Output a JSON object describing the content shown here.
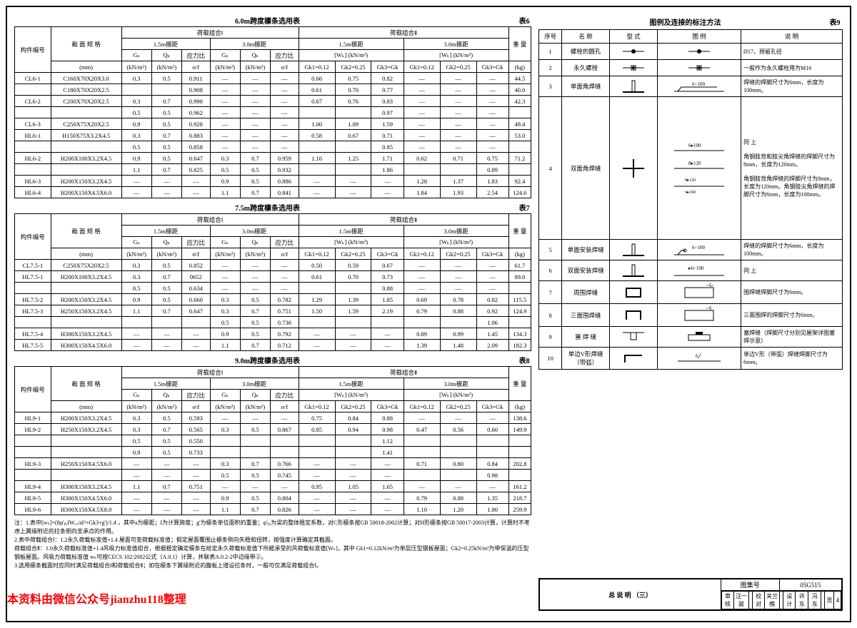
{
  "tables": {
    "t6": {
      "title": "6.0m跨度檩条选用表",
      "label": "表6"
    },
    "t7": {
      "title": "7.5m跨度檩条选用表",
      "label": "表7"
    },
    "t8": {
      "title": "9.0m跨度檩条选用表",
      "label": "表8"
    },
    "t9": {
      "title": "图例及连接的标注方法",
      "label": "表9"
    }
  },
  "headers": {
    "member": "构件编号",
    "section": "截 面 规 格",
    "mm": "(mm)",
    "load1": "荷载组合Ⅰ",
    "load2": "荷载组合Ⅱ",
    "span15": "1.5m檩距",
    "span30": "3.0m檩距",
    "gk": "Gₖ",
    "qk": "Qₖ",
    "ratio": "应力比",
    "sf": "σ/f",
    "unit": "(kN/m²)",
    "wk": "[Wₖ] (kN/m²)",
    "gk012": "Gk1=0.12",
    "gk025": "Gk2=0.25",
    "gk3": "Gk3=Gk",
    "weight": "重 量",
    "kg": "(kg)"
  },
  "t6rows": [
    [
      "CL6-1",
      "C160X70X20X3.0",
      "0.3",
      "0.5",
      "0.911",
      "—",
      "—",
      "—",
      "0.66",
      "0.75",
      "0.82",
      "—",
      "—",
      "—",
      "44.5"
    ],
    [
      "",
      "C180X70X20X2.5",
      "",
      "",
      "0.908",
      "—",
      "—",
      "—",
      "0.61",
      "0.70",
      "0.77",
      "—",
      "—",
      "—",
      "40.0"
    ],
    [
      "CL6-2",
      "C200X70X20X2.5",
      "0.3",
      "0.7",
      "0.990",
      "—",
      "—",
      "—",
      "0.67",
      "0.76",
      "0.83",
      "—",
      "—",
      "—",
      "42.3"
    ],
    [
      "",
      "",
      "0.5",
      "0.5",
      "0.962",
      "—",
      "—",
      "—",
      "",
      "",
      "0.97",
      "—",
      "—",
      "—",
      ""
    ],
    [
      "CL6-3",
      "C250X75X20X2.5",
      "0.9",
      "0.5",
      "0.928",
      "—",
      "—",
      "—",
      "1.00",
      "1.09",
      "1.59",
      "—",
      "—",
      "—",
      "49.4"
    ],
    [
      "HL6-1",
      "H150X75X3.2X4.5",
      "0.3",
      "0.7",
      "0.883",
      "—",
      "—",
      "—",
      "0.58",
      "0.67",
      "0.71",
      "—",
      "—",
      "—",
      "53.0"
    ],
    [
      "",
      "",
      "0.5",
      "0.5",
      "0.858",
      "—",
      "—",
      "—",
      "",
      "",
      "0.85",
      "—",
      "—",
      "—",
      ""
    ],
    [
      "HL6-2",
      "H200X100X3.2X4.5",
      "0.9",
      "0.5",
      "0.647",
      "0.3",
      "0.7",
      "0.959",
      "1.16",
      "1.25",
      "1.71",
      "0.62",
      "0.71",
      "0.75",
      "71.2"
    ],
    [
      "",
      "",
      "1.1",
      "0.7",
      "0.825",
      "0.5",
      "0.5",
      "0.932",
      "",
      "",
      "1.86",
      "",
      "",
      "0.89",
      ""
    ],
    [
      "HL6-3",
      "H200X150X3.2X4.5",
      "—",
      "—",
      "—",
      "0.9",
      "0.5",
      "0.886",
      "—",
      "—",
      "—",
      "1.28",
      "1.37",
      "1.83",
      "92.4"
    ],
    [
      "HL6-4",
      "H200X150X4.5X6.0",
      "—",
      "—",
      "—",
      "1.1",
      "0.7",
      "0.841",
      "—",
      "—",
      "—",
      "1.84",
      "1.93",
      "2.54",
      "124.6"
    ]
  ],
  "t7rows": [
    [
      "CL7.5-1",
      "C250X75X20X2.5",
      "0.3",
      "0.5",
      "0.852",
      "—",
      "—",
      "—",
      "0.50",
      "0.59",
      "0.67",
      "—",
      "—",
      "—",
      "61.7"
    ],
    [
      "HL7.5-1",
      "H200X100X3.2X4.5",
      "0.3",
      "0.7",
      "0652",
      "—",
      "—",
      "—",
      "0.61",
      "0.70",
      "0.73",
      "—",
      "—",
      "—",
      "89.0"
    ],
    [
      "",
      "",
      "0.5",
      "0.5",
      "0.634",
      "—",
      "—",
      "—",
      "",
      "",
      "0.88",
      "—",
      "—",
      "—",
      ""
    ],
    [
      "HL7.5-2",
      "H200X150X3.2X4.5",
      "0.9",
      "0.5",
      "0.660",
      "0.3",
      "0.5",
      "0.782",
      "1.29",
      "1.39",
      "1.85",
      "0.69",
      "0.78",
      "0.82",
      "115.5"
    ],
    [
      "HL7.5-3",
      "H250X150X3.2X4.5",
      "1.1",
      "0.7",
      "0.647",
      "0.3",
      "0.7",
      "0.751",
      "1.50",
      "1.59",
      "2.19",
      "0.79",
      "0.88",
      "0.92",
      "124.9"
    ],
    [
      "",
      "",
      "",
      "",
      "",
      "0.5",
      "0.5",
      "0.730",
      "",
      "",
      "",
      "",
      "",
      "1.06",
      ""
    ],
    [
      "HL7.5-4",
      "H300X150X3.2X4.5",
      "—",
      "—",
      "—",
      "0.9",
      "0.5",
      "0.792",
      "—",
      "—",
      "—",
      "0.89",
      "0.99",
      "1.45",
      "134.3"
    ],
    [
      "HL7.5-5",
      "H300X150X4.5X6.0",
      "—",
      "—",
      "—",
      "1.1",
      "0.7",
      "0.712",
      "—",
      "—",
      "—",
      "1.39",
      "1.48",
      "2.09",
      "182.3"
    ]
  ],
  "t8rows": [
    [
      "HL9-1",
      "H200X150X3.2X4.5",
      "0.3",
      "0.5",
      "0.593",
      "—",
      "—",
      "—",
      "0.75",
      "0.84",
      "0.88",
      "—",
      "—",
      "—",
      "138.6"
    ],
    [
      "HL9-2",
      "H250X150X3.2X4.5",
      "0.3",
      "0.7",
      "0.565",
      "0.3",
      "0.5",
      "0.867",
      "0.85",
      "0.94",
      "0.98",
      "0.47",
      "0.56",
      "0.60",
      "149.9"
    ],
    [
      "",
      "",
      "0.5",
      "0.5",
      "0.550",
      "",
      "",
      "",
      "",
      "",
      "1.12",
      "",
      "",
      "",
      ""
    ],
    [
      "",
      "",
      "0.9",
      "0.5",
      "0.733",
      "",
      "",
      "",
      "",
      "",
      "1.41",
      "",
      "",
      "",
      ""
    ],
    [
      "HL9-3",
      "H250X150X4.5X6.0",
      "—",
      "—",
      "—",
      "0.3",
      "0.7",
      "0.766",
      "—",
      "—",
      "—",
      "0.71",
      "0.80",
      "0.84",
      "202.8"
    ],
    [
      "",
      "",
      "—",
      "—",
      "—",
      "0.5",
      "0.5",
      "0.745",
      "—",
      "—",
      "—",
      "",
      "",
      "0.98",
      ""
    ],
    [
      "HL9-4",
      "H300X150X3.2X4.5",
      "1.1",
      "0.7",
      "0.751",
      "—",
      "—",
      "—",
      "0.95",
      "1.05",
      "1.65",
      "—",
      "—",
      "—",
      "161.2"
    ],
    [
      "HL9-5",
      "H300X150X4.5X6.0",
      "—",
      "—",
      "—",
      "0.9",
      "0.5",
      "0.804",
      "—",
      "—",
      "—",
      "0.79",
      "0.88",
      "1.35",
      "218.7"
    ],
    [
      "HL9-6",
      "H300X150X4.5X8.0",
      "—",
      "—",
      "—",
      "1.1",
      "0.7",
      "0.826",
      "—",
      "—",
      "—",
      "1.10",
      "1.20",
      "1.80",
      "259.9"
    ]
  ],
  "legend": {
    "h": {
      "n": "序号",
      "name": "名 称",
      "type": "型 式",
      "dia": "图    例",
      "desc": "说    明"
    },
    "rows": [
      {
        "n": "1",
        "name": "螺栓的圆孔",
        "desc": "Ø17，预留孔径"
      },
      {
        "n": "2",
        "name": "永久螺栓",
        "desc": "一般作为永久螺栓用为M16"
      },
      {
        "n": "3",
        "name": "单面角焊缝",
        "desc": "焊缝的焊脚尺寸为6mm，长度为100mm。"
      },
      {
        "n": "4",
        "name": "双面角焊缝",
        "desc": "同   上\n\n角钢肢背和肢尖角焊缝的焊脚尺寸为8mm，长度为120mm。\n\n角钢肢背角焊缝的焊脚尺寸为8mm，长度为120mm。角钢肢尖角焊缝的焊脚尺寸为6mm，长度为100mm。"
      },
      {
        "n": "5",
        "name": "单面安装焊缝",
        "desc": "焊缝的焊脚尺寸为6mm，长度为100mm。"
      },
      {
        "n": "6",
        "name": "双面安装焊缝",
        "desc": "同    上"
      },
      {
        "n": "7",
        "name": "周围焊缝",
        "desc": "围焊缝焊脚尺寸为6mm。"
      },
      {
        "n": "8",
        "name": "三面围焊缝",
        "desc": "三面围焊的焊脚尺寸为6mm。"
      },
      {
        "n": "9",
        "name": "塞 焊 缝",
        "desc": "塞焊缝（焊脚尺寸分别见屋架详图塞焊示意）"
      },
      {
        "n": "10",
        "name": "单边V形焊缝（带弧）",
        "desc": "单边V形（带弧）焊缝焊脚尺寸为6mm。"
      }
    ]
  },
  "notes": {
    "n1": "注：1.表中[wₖ]=(8φ'ᵦₓfWₑₓ/aI²+Gk3+g')/1.4 ，其中a为檩距；I为计算跨度；g'为檩条单位面积的重量；φ'ᵦₓ为梁的整体稳定系数，对C形檩条按GB 50018-2002计算；对H形檩条按GB 50017-2003计算，计算时不考虑上翼缘附近的拉条侧向支承点的作用。",
    "n2": "2.表中荷载组合Ⅰ：1.2永久荷载标准值+1.4 屋面可变荷载标准值；假定屋面覆围止檩条倒向失稳和扭转，按强度计算确定其截面。",
    "n3": "  荷载组合Ⅱ：1.0永久荷载标准值+1.4风吸力标准值组合，根据稳定确定檩条在给定永久荷载标准值下所能承受的风荷载标准值[Wₖ]，其中 Gk1=0.12kN/m²为单层压型钢板屋面；Gk2=0.25kN/m²为带保温的压型钢板屋面。风吸力荷载标准值 wₖ可按CECS 102:2002公式（A.0.1）计算，并联表A.0.2-2中边缘带②。",
    "n4": "3.选用檩条截面时应同时满足荷载组合Ⅰ和荷载组合Ⅱ；如在檩条下翼缘附近的腹板上增设拉条时，一般可仅满足荷载组合Ⅰ。"
  },
  "titleblock": {
    "main": "总 说 明 （三）",
    "code": "图集号",
    "codeval": "05G515",
    "row": "审核|汪一骏|        |校对|关兰樵|        |设计|许 东|冯 东|  |页",
    "pageval": "4"
  },
  "watermark": "本资料由微信公众号jianzhu118整理"
}
